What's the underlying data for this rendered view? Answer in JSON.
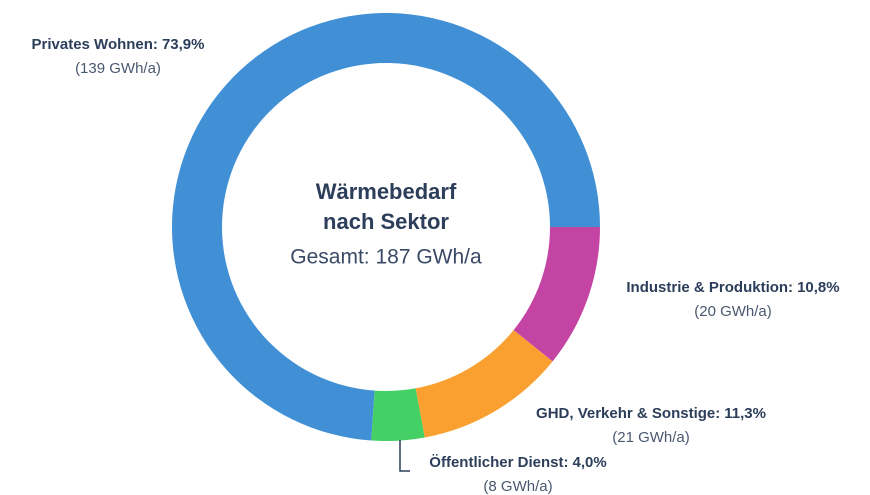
{
  "chart_data": {
    "type": "donut",
    "title": "Wärmebedarf nach Sektor",
    "subtitle": "Gesamt: 187 GWh/a",
    "categories": [
      "Industrie & Produktion:",
      "GHD, Verkehr & Sonstige:",
      "Öffentlicher Dienst:",
      "Privates Wohnen:"
    ],
    "values": [
      10.8,
      11.3,
      4.0,
      73.9
    ],
    "value_labels": [
      "10,8%",
      "11,3%",
      "4,0%",
      "73,9%"
    ],
    "energy_labels": [
      "(20 GWh/a)",
      "(21 GWh/a)",
      "(8 GWh/a)",
      "(139 GWh/a)"
    ],
    "colors": [
      "#c444a4",
      "#f9a030",
      "#45d065",
      "#4190d6"
    ]
  }
}
